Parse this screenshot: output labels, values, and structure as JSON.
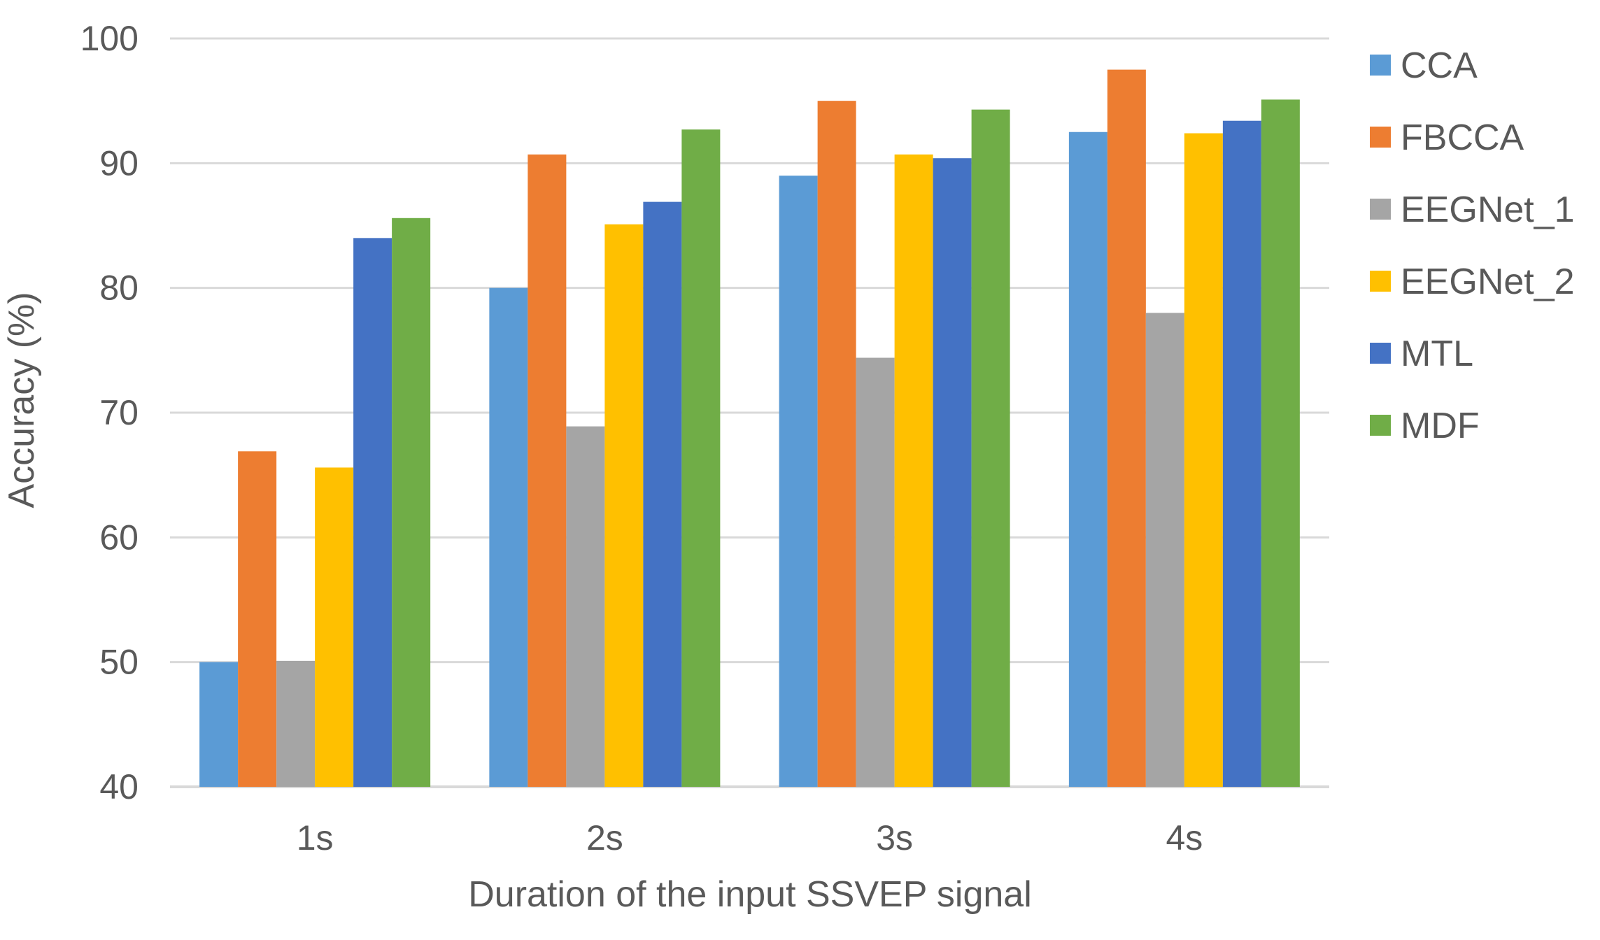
{
  "chart_data": {
    "type": "bar",
    "title": "",
    "xlabel": "Duration of the input SSVEP signal",
    "ylabel": "Accuracy (%)",
    "ylim": [
      40,
      100
    ],
    "yticks": [
      40,
      50,
      60,
      70,
      80,
      90,
      100
    ],
    "grid": true,
    "legend_position": "right",
    "categories": [
      "1s",
      "2s",
      "3s",
      "4s"
    ],
    "series": [
      {
        "name": "CCA",
        "color": "#5B9BD5",
        "values": [
          50.0,
          80.0,
          89.0,
          92.5
        ]
      },
      {
        "name": "FBCCA",
        "color": "#ED7D31",
        "values": [
          66.9,
          90.7,
          95.0,
          97.5
        ]
      },
      {
        "name": "EEGNet_1",
        "color": "#A5A5A5",
        "values": [
          50.1,
          68.9,
          74.4,
          78.0
        ]
      },
      {
        "name": "EEGNet_2",
        "color": "#FFC000",
        "values": [
          65.6,
          85.1,
          90.7,
          92.4
        ]
      },
      {
        "name": "MTL",
        "color": "#4472C4",
        "values": [
          84.0,
          86.9,
          90.4,
          93.4
        ]
      },
      {
        "name": "MDF",
        "color": "#70AD47",
        "values": [
          85.6,
          92.7,
          94.3,
          95.1
        ]
      }
    ]
  }
}
